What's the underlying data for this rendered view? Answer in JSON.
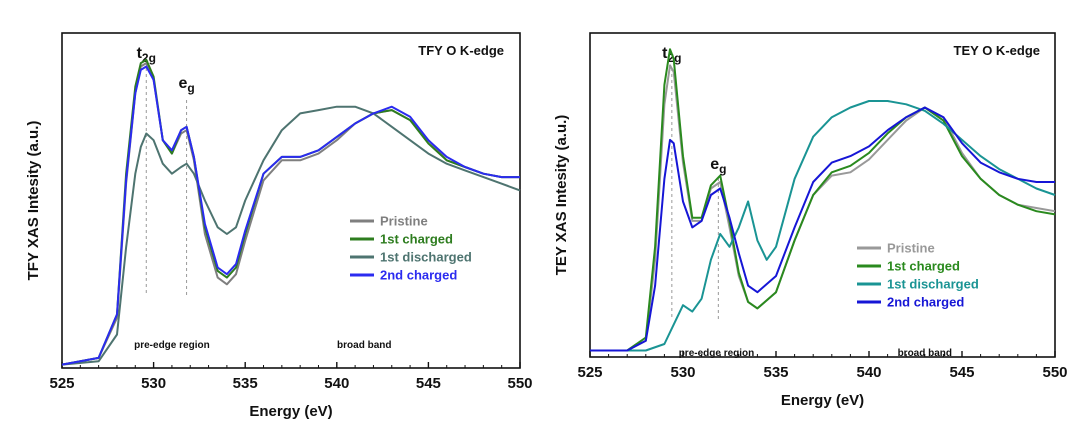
{
  "chart_data": [
    {
      "type": "line",
      "title": "TFY O K-edge",
      "xlabel": "Energy (eV)",
      "ylabel": "TFY XAS Intesity (a.u.)",
      "xlim": [
        525,
        550
      ],
      "ylim": [
        0,
        1
      ],
      "xticks": [
        525,
        530,
        535,
        540,
        545,
        550
      ],
      "peak_labels": [
        {
          "main": "t",
          "sub": "2g",
          "x": 529.6
        },
        {
          "main": "e",
          "sub": "g",
          "x": 531.8
        }
      ],
      "annotations": [
        {
          "text": "pre-edge region",
          "x": 531.0
        },
        {
          "text": "broad band",
          "x": 541.5
        }
      ],
      "legend_position": "right-middle",
      "series": [
        {
          "name": "Pristine",
          "color": "#7f7f7f",
          "x": [
            525,
            527,
            528,
            528.5,
            529,
            529.3,
            529.6,
            530,
            530.5,
            531,
            531.5,
            531.8,
            532.2,
            532.8,
            533.5,
            534,
            534.5,
            535,
            536,
            537,
            538,
            539,
            540,
            541,
            542,
            543,
            544,
            545,
            546,
            547,
            548,
            549,
            550
          ],
          "y": [
            0.01,
            0.03,
            0.15,
            0.55,
            0.82,
            0.9,
            0.91,
            0.86,
            0.68,
            0.64,
            0.7,
            0.71,
            0.62,
            0.4,
            0.27,
            0.25,
            0.28,
            0.38,
            0.56,
            0.62,
            0.62,
            0.64,
            0.68,
            0.73,
            0.76,
            0.77,
            0.74,
            0.68,
            0.62,
            0.6,
            0.58,
            0.57,
            0.57
          ]
        },
        {
          "name": "1st charged",
          "color": "#2e7d1f",
          "x": [
            525,
            527,
            528,
            528.5,
            529,
            529.3,
            529.6,
            530,
            530.5,
            531,
            531.5,
            531.8,
            532.2,
            532.8,
            533.5,
            534,
            534.5,
            535,
            536,
            537,
            538,
            539,
            540,
            541,
            542,
            543,
            544,
            545,
            546,
            547,
            548,
            549,
            550
          ],
          "y": [
            0.01,
            0.03,
            0.16,
            0.58,
            0.84,
            0.91,
            0.92,
            0.87,
            0.68,
            0.64,
            0.71,
            0.72,
            0.63,
            0.42,
            0.29,
            0.27,
            0.3,
            0.4,
            0.58,
            0.63,
            0.63,
            0.65,
            0.69,
            0.73,
            0.76,
            0.77,
            0.74,
            0.67,
            0.62,
            0.6,
            0.58,
            0.57,
            0.57
          ]
        },
        {
          "name": "1st discharged",
          "color": "#4e7470",
          "x": [
            525,
            527,
            528,
            528.5,
            529,
            529.3,
            529.6,
            530,
            530.5,
            531,
            531.5,
            531.8,
            532.2,
            532.8,
            533.5,
            534,
            534.5,
            535,
            536,
            537,
            538,
            539,
            540,
            541,
            542,
            543,
            544,
            545,
            546,
            547,
            548,
            549,
            550
          ],
          "y": [
            0.01,
            0.02,
            0.1,
            0.36,
            0.58,
            0.66,
            0.7,
            0.68,
            0.61,
            0.58,
            0.6,
            0.61,
            0.58,
            0.5,
            0.42,
            0.4,
            0.42,
            0.5,
            0.62,
            0.71,
            0.76,
            0.77,
            0.78,
            0.78,
            0.76,
            0.72,
            0.68,
            0.64,
            0.61,
            0.59,
            0.57,
            0.55,
            0.53
          ]
        },
        {
          "name": "2nd charged",
          "color": "#2b2bf0",
          "x": [
            525,
            527,
            528,
            528.5,
            529,
            529.3,
            529.6,
            530,
            530.5,
            531,
            531.5,
            531.8,
            532.2,
            532.8,
            533.5,
            534,
            534.5,
            535,
            536,
            537,
            538,
            539,
            540,
            541,
            542,
            543,
            544,
            545,
            546,
            547,
            548,
            549,
            550
          ],
          "y": [
            0.01,
            0.03,
            0.16,
            0.56,
            0.82,
            0.89,
            0.9,
            0.86,
            0.68,
            0.65,
            0.71,
            0.72,
            0.63,
            0.43,
            0.3,
            0.28,
            0.31,
            0.41,
            0.58,
            0.63,
            0.63,
            0.65,
            0.69,
            0.73,
            0.76,
            0.78,
            0.75,
            0.68,
            0.63,
            0.6,
            0.58,
            0.57,
            0.57
          ]
        }
      ]
    },
    {
      "type": "line",
      "title": "TEY O K-edge",
      "xlabel": "Energy (eV)",
      "ylabel": "TEY XAS Intesity (a.u.)",
      "xlim": [
        525,
        550
      ],
      "ylim": [
        0,
        1
      ],
      "xticks": [
        525,
        530,
        535,
        540,
        545,
        550
      ],
      "peak_labels": [
        {
          "main": "t",
          "sub": "2g",
          "x": 529.4
        },
        {
          "main": "e",
          "sub": "g",
          "x": 531.9
        }
      ],
      "annotations": [
        {
          "text": "pre-edge region",
          "x": 531.8
        },
        {
          "text": "broad band",
          "x": 543.0
        }
      ],
      "legend_position": "right-bottom",
      "series": [
        {
          "name": "Pristine",
          "color": "#999999",
          "x": [
            525,
            527,
            528,
            528.5,
            529,
            529.3,
            529.5,
            530,
            530.5,
            531,
            531.5,
            532,
            532.5,
            533,
            533.5,
            534,
            535,
            536,
            537,
            538,
            539,
            540,
            541,
            542,
            543,
            544,
            545,
            546,
            547,
            548,
            549,
            550
          ],
          "y": [
            0.02,
            0.02,
            0.05,
            0.3,
            0.78,
            0.9,
            0.88,
            0.6,
            0.42,
            0.42,
            0.52,
            0.54,
            0.4,
            0.25,
            0.17,
            0.15,
            0.2,
            0.36,
            0.5,
            0.56,
            0.57,
            0.61,
            0.67,
            0.73,
            0.77,
            0.74,
            0.63,
            0.55,
            0.5,
            0.47,
            0.46,
            0.45
          ]
        },
        {
          "name": "1st charged",
          "color": "#2a8a1e",
          "x": [
            525,
            527,
            528,
            528.5,
            529,
            529.3,
            529.5,
            530,
            530.5,
            531,
            531.5,
            532,
            532.5,
            533,
            533.5,
            534,
            535,
            536,
            537,
            538,
            539,
            540,
            541,
            542,
            543,
            544,
            545,
            546,
            547,
            548,
            549,
            550
          ],
          "y": [
            0.02,
            0.02,
            0.06,
            0.34,
            0.84,
            0.95,
            0.92,
            0.62,
            0.43,
            0.43,
            0.53,
            0.56,
            0.42,
            0.26,
            0.17,
            0.15,
            0.2,
            0.36,
            0.5,
            0.57,
            0.59,
            0.63,
            0.69,
            0.74,
            0.77,
            0.73,
            0.62,
            0.55,
            0.5,
            0.47,
            0.45,
            0.44
          ]
        },
        {
          "name": "1st discharged",
          "color": "#1a9494",
          "x": [
            525,
            527,
            528,
            529,
            529.5,
            530,
            530.5,
            531,
            531.5,
            532,
            532.5,
            533,
            533.5,
            534,
            534.5,
            535,
            536,
            537,
            538,
            539,
            540,
            541,
            542,
            543,
            544,
            545,
            546,
            547,
            548,
            549,
            550
          ],
          "y": [
            0.02,
            0.02,
            0.02,
            0.04,
            0.1,
            0.16,
            0.14,
            0.18,
            0.3,
            0.38,
            0.34,
            0.4,
            0.48,
            0.36,
            0.3,
            0.34,
            0.55,
            0.68,
            0.74,
            0.77,
            0.79,
            0.79,
            0.78,
            0.76,
            0.72,
            0.67,
            0.62,
            0.58,
            0.55,
            0.52,
            0.5
          ]
        },
        {
          "name": "2nd charged",
          "color": "#1616d6",
          "x": [
            525,
            527,
            528,
            528.5,
            529,
            529.3,
            529.5,
            530,
            530.5,
            531,
            531.5,
            532,
            532.5,
            533,
            533.5,
            534,
            535,
            536,
            537,
            538,
            539,
            540,
            541,
            542,
            543,
            544,
            545,
            546,
            547,
            548,
            549,
            550
          ],
          "y": [
            0.02,
            0.02,
            0.05,
            0.22,
            0.55,
            0.67,
            0.66,
            0.48,
            0.4,
            0.42,
            0.5,
            0.52,
            0.43,
            0.32,
            0.22,
            0.2,
            0.25,
            0.4,
            0.54,
            0.6,
            0.62,
            0.65,
            0.7,
            0.74,
            0.77,
            0.74,
            0.66,
            0.6,
            0.57,
            0.55,
            0.54,
            0.54
          ]
        }
      ]
    }
  ]
}
